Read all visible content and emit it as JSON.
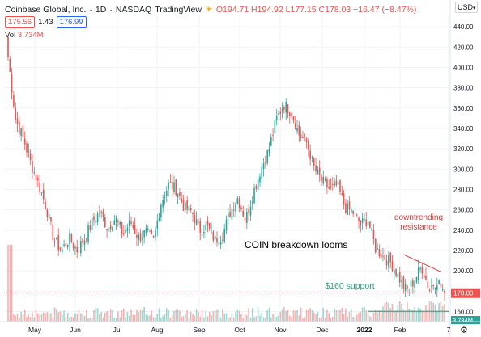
{
  "header": {
    "symbol": "Coinbase Global, Inc.",
    "interval": "1D",
    "exchange": "NASDAQ",
    "source": "TradingView",
    "ohlc": "O194.71 H194.92 L177.15 C178.03 −16.47 (−8.47%)",
    "bid": "175.56",
    "spread": "1.43",
    "ask": "176.99",
    "vol_label": "Vol",
    "vol_value": "3.734M",
    "currency": "USD"
  },
  "chart_data": {
    "type": "candlestick",
    "title": "COIN breakdown looms",
    "y_range": [
      150,
      452
    ],
    "y_ticks": [
      160,
      180,
      200,
      220,
      240,
      260,
      280,
      300,
      320,
      340,
      360,
      380,
      400,
      420,
      440
    ],
    "x_labels": [
      "May",
      "Jun",
      "Jul",
      "Aug",
      "Sep",
      "Oct",
      "Nov",
      "Dec",
      "2022",
      "Feb",
      "7"
    ],
    "last_price": 178.03,
    "last_price_label": "178.03",
    "last_volume_label": "3.734M",
    "close_path": [
      410,
      348,
      330,
      305,
      285,
      262,
      230,
      220,
      232,
      220,
      232,
      248,
      258,
      242,
      252,
      236,
      248,
      232,
      238,
      230,
      268,
      285,
      280,
      262,
      258,
      240,
      244,
      230,
      235,
      258,
      272,
      250,
      276,
      300,
      318,
      348,
      364,
      356,
      334,
      326,
      300,
      288,
      280,
      284,
      262,
      258,
      246,
      250,
      222,
      214,
      208,
      194,
      180,
      190,
      204,
      182,
      191,
      178.03
    ],
    "annotations": [
      {
        "text": "COIN breakdown looms",
        "color": "#000000"
      },
      {
        "text": "downtrending",
        "color": "#e53935"
      },
      {
        "text": "resistance",
        "color": "#e53935"
      },
      {
        "text": "$160 support",
        "color": "#2e9e76"
      }
    ],
    "support_level": 160,
    "resistance_line": {
      "start": {
        "date_index": 212,
        "price": 216
      },
      "end": {
        "date_index": 232,
        "price": 199
      }
    },
    "colors": {
      "up": "#26a69a",
      "down": "#ef5350",
      "support": "#4caf8f",
      "resistance": "#e53935"
    }
  }
}
